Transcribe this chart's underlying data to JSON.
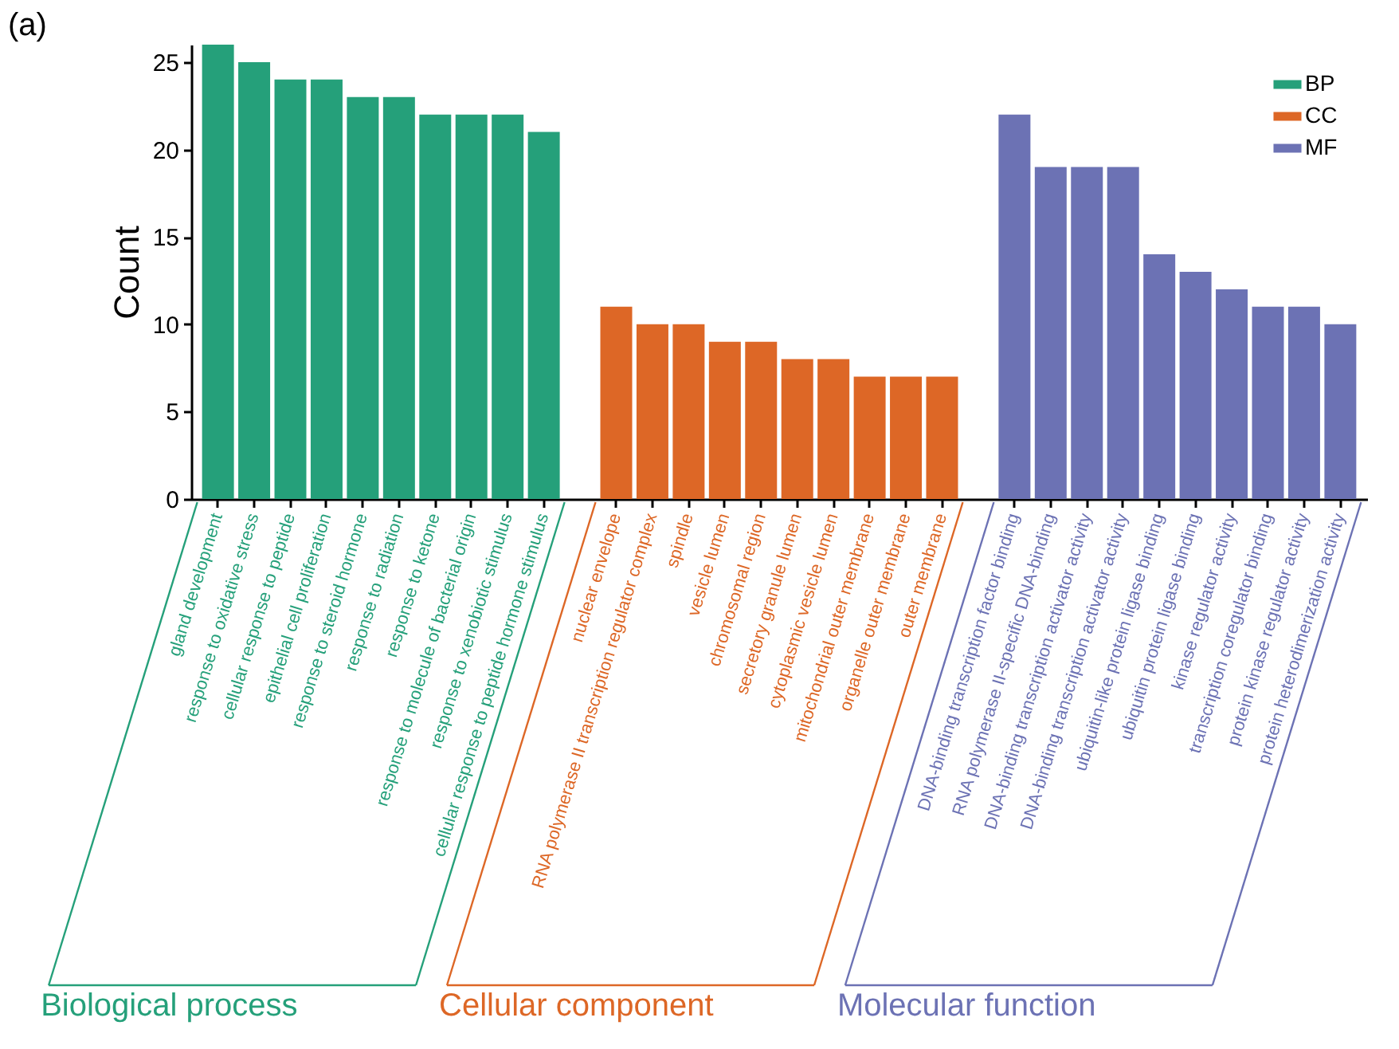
{
  "chart_data": {
    "type": "bar",
    "title": "(a)",
    "ylabel": "Count",
    "categories": [
      "gland development",
      "response to oxidative stress",
      "cellular response to peptide",
      "epithelial cell proliferation",
      "response to steroid hormone",
      "response to radiation",
      "response to ketone",
      "response to molecule of bacterial origin",
      "response to xenobiotic stimulus",
      "cellular response to peptide hormone stimulus",
      "nuclear envelope",
      "RNA polymerase II transcription regulator complex",
      "spindle",
      "vesicle lumen",
      "chromosomal region",
      "secretory granule lumen",
      "cytoplasmic vesicle lumen",
      "mitochondrial outer membrane",
      "organelle outer membrane",
      "outer membrane",
      "DNA-binding transcription factor binding",
      "RNA polymerase II-specific DNA-binding",
      "DNA-binding transcription activator activity",
      "DNA-binding transcription activator activity",
      "ubiquitin-like protein ligase binding",
      "ubiquitin protein ligase binding",
      "kinase regulator activity",
      "transcription coregulator binding",
      "protein kinase regulator activity",
      "protein heterodimerization activity"
    ],
    "series": [
      {
        "name": "BP",
        "color": "#25a07a",
        "values": [
          26,
          25,
          24,
          24,
          23,
          23,
          22,
          22,
          22,
          21,
          null,
          null,
          null,
          null,
          null,
          null,
          null,
          null,
          null,
          null,
          null,
          null,
          null,
          null,
          null,
          null,
          null,
          null,
          null,
          null
        ]
      },
      {
        "name": "CC",
        "color": "#dd6726",
        "values": [
          null,
          null,
          null,
          null,
          null,
          null,
          null,
          null,
          null,
          null,
          11,
          10,
          10,
          9,
          9,
          8,
          8,
          7,
          7,
          7,
          null,
          null,
          null,
          null,
          null,
          null,
          null,
          null,
          null,
          null
        ]
      },
      {
        "name": "MF",
        "color": "#6c72b4",
        "values": [
          null,
          null,
          null,
          null,
          null,
          null,
          null,
          null,
          null,
          null,
          null,
          null,
          null,
          null,
          null,
          null,
          null,
          null,
          null,
          null,
          22,
          19,
          19,
          19,
          14,
          13,
          12,
          11,
          11,
          10
        ]
      }
    ],
    "annotations": [
      "Biological process",
      "Cellular component",
      "Molecular function"
    ],
    "ylim": [
      0,
      26
    ],
    "yticks": [
      0,
      5,
      10,
      15,
      20,
      25
    ],
    "grid": false,
    "legend": "top right"
  }
}
